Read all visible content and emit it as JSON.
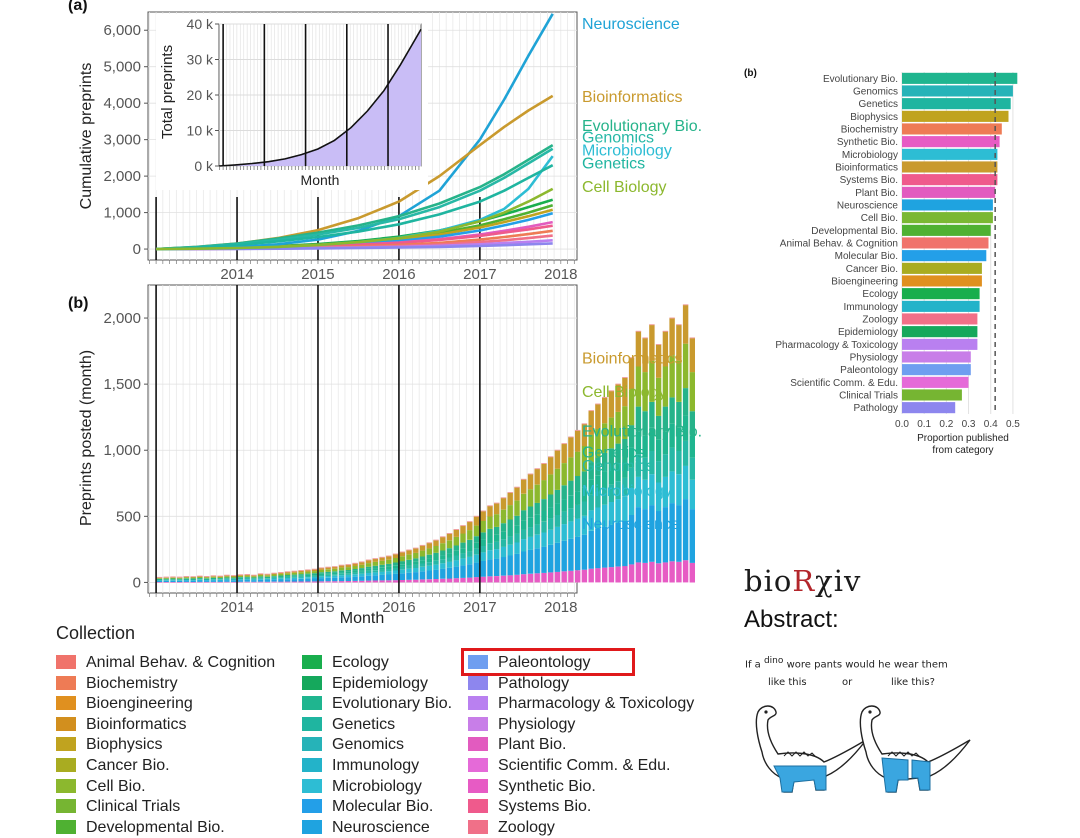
{
  "panel_labels": {
    "top": "(a)",
    "bottom": "(b)",
    "right": "(b)"
  },
  "chart_data": [
    {
      "id": "cumulative",
      "type": "line",
      "title": "",
      "xlabel": "",
      "ylabel": "Cumulative preprints",
      "x_ticks": [
        "2014",
        "2015",
        "2016",
        "2017",
        "2018"
      ],
      "xlim": [
        2013.4,
        2018.7
      ],
      "ylim": [
        -300,
        6500
      ],
      "y_ticks": [
        0,
        1000,
        2000,
        3000,
        4000,
        5000,
        6000
      ],
      "y_tick_labels": [
        "0",
        "1,000",
        "2,000",
        "3,000",
        "4,000",
        "5,000",
        "6,000"
      ],
      "vlines": [
        2013.5,
        2014.5,
        2015.5,
        2016.5,
        2017.5
      ],
      "x": [
        2013.5,
        2014.0,
        2014.5,
        2015.0,
        2015.5,
        2016.0,
        2016.5,
        2017.0,
        2017.5,
        2017.8,
        2018.1,
        2018.4
      ],
      "series": [
        {
          "name": "Neuroscience",
          "color": "#1fa3d6",
          "labeled": true,
          "label_y": 6200,
          "values": [
            0,
            20,
            60,
            130,
            260,
            500,
            900,
            1600,
            3000,
            4100,
            5300,
            6450
          ]
        },
        {
          "name": "Bioinformatics",
          "color": "#c99a2e",
          "labeled": true,
          "label_y": 4200,
          "values": [
            0,
            60,
            150,
            300,
            520,
            850,
            1300,
            2000,
            2850,
            3350,
            3800,
            4200
          ]
        },
        {
          "name": "Evolutionary Bio.",
          "color": "#26b38a",
          "labeled": true,
          "label_y": 3400,
          "values": [
            0,
            60,
            150,
            290,
            450,
            650,
            900,
            1250,
            1700,
            2050,
            2450,
            2850
          ]
        },
        {
          "name": "Genomics",
          "color": "#27b8a6",
          "labeled": true,
          "label_y": 3080,
          "values": [
            0,
            50,
            130,
            250,
            400,
            580,
            820,
            1150,
            1600,
            1950,
            2350,
            2750
          ]
        },
        {
          "name": "Microbiology",
          "color": "#2dbdd4",
          "labeled": true,
          "label_y": 2730,
          "values": [
            0,
            10,
            30,
            60,
            110,
            190,
            310,
            500,
            800,
            1100,
            1650,
            2550
          ]
        },
        {
          "name": "Genetics",
          "color": "#1fb5a0",
          "labeled": true,
          "label_y": 2380,
          "values": [
            0,
            40,
            110,
            210,
            330,
            480,
            680,
            950,
            1300,
            1600,
            1950,
            2300
          ]
        },
        {
          "name": "Cell Biology",
          "color": "#8cb82e",
          "labeled": true,
          "label_y": 1730,
          "values": [
            0,
            10,
            30,
            60,
            110,
            190,
            300,
            480,
            760,
            1000,
            1300,
            1650
          ]
        },
        {
          "name": "Ecology",
          "color": "#19ae4d",
          "labeled": false,
          "values": [
            0,
            15,
            40,
            80,
            140,
            220,
            340,
            510,
            760,
            950,
            1150,
            1350
          ]
        },
        {
          "name": "Developmental Bio.",
          "color": "#4fb132",
          "labeled": false,
          "values": [
            0,
            15,
            35,
            70,
            120,
            190,
            290,
            440,
            650,
            820,
            1000,
            1200
          ]
        },
        {
          "name": "Biophysics",
          "color": "#c0a31f",
          "labeled": false,
          "values": [
            0,
            15,
            35,
            70,
            115,
            180,
            270,
            400,
            590,
            740,
            900,
            1080
          ]
        },
        {
          "name": "Molecular Bio.",
          "color": "#239fe8",
          "labeled": false,
          "values": [
            0,
            10,
            25,
            50,
            85,
            140,
            220,
            340,
            510,
            650,
            800,
            980
          ]
        },
        {
          "name": "Plant Bio.",
          "color": "#e25bbf",
          "labeled": false,
          "values": [
            0,
            10,
            25,
            45,
            75,
            120,
            180,
            270,
            400,
            500,
            610,
            740
          ]
        },
        {
          "name": "Systems Bio.",
          "color": "#ef5a8c",
          "labeled": false,
          "values": [
            0,
            10,
            25,
            45,
            75,
            115,
            170,
            250,
            360,
            450,
            540,
            640
          ]
        },
        {
          "name": "Biochemistry",
          "color": "#ee7b55",
          "labeled": false,
          "values": [
            0,
            5,
            12,
            25,
            45,
            75,
            115,
            170,
            260,
            330,
            410,
            500
          ]
        },
        {
          "name": "Zoology",
          "color": "#f07088",
          "labeled": false,
          "values": [
            0,
            5,
            10,
            20,
            35,
            55,
            85,
            125,
            190,
            240,
            300,
            370
          ]
        },
        {
          "name": "Pharmacology & Toxicology",
          "color": "#b980f0",
          "labeled": false,
          "values": [
            0,
            3,
            8,
            15,
            25,
            40,
            60,
            90,
            130,
            165,
            200,
            240
          ]
        },
        {
          "name": "Pathology",
          "color": "#8d86ee",
          "labeled": false,
          "values": [
            0,
            2,
            5,
            10,
            18,
            28,
            42,
            60,
            85,
            105,
            130,
            155
          ]
        }
      ],
      "inset": {
        "xlabel": "Month",
        "ylabel": "Total preprints",
        "y_ticks": [
          0,
          10000,
          20000,
          30000,
          40000
        ],
        "y_tick_labels": [
          "0 k",
          "10 k",
          "20 k",
          "30 k",
          "40 k"
        ],
        "ylim": [
          0,
          40000
        ],
        "vlines": [
          2013.5,
          2014.5,
          2015.5,
          2016.5,
          2017.5
        ],
        "xlim": [
          2013.4,
          2018.3
        ],
        "x": [
          2013.4,
          2013.8,
          2014.2,
          2014.6,
          2015.0,
          2015.4,
          2015.8,
          2016.2,
          2016.6,
          2017.0,
          2017.4,
          2017.8,
          2018.1,
          2018.3
        ],
        "values": [
          0,
          300,
          700,
          1200,
          2000,
          3200,
          4800,
          7200,
          10800,
          15500,
          21200,
          28500,
          34500,
          38500
        ],
        "fill": "#c9bdf6"
      }
    },
    {
      "id": "monthly",
      "type": "bar",
      "stacked": true,
      "title": "",
      "xlabel": "Month",
      "ylabel": "Preprints posted (month)",
      "x_ticks": [
        "2014",
        "2015",
        "2016",
        "2017",
        "2018"
      ],
      "xlim": [
        2013.4,
        2018.7
      ],
      "ylim": [
        -80,
        2250
      ],
      "y_ticks": [
        0,
        500,
        1000,
        1500,
        2000
      ],
      "y_tick_labels": [
        "0",
        "500",
        "1,000",
        "1,500",
        "2,000"
      ],
      "vlines": [
        2013.5,
        2014.5,
        2015.5,
        2016.5,
        2017.5
      ],
      "month_totals": [
        38,
        40,
        42,
        40,
        45,
        43,
        48,
        45,
        50,
        48,
        55,
        52,
        58,
        60,
        55,
        65,
        62,
        70,
        75,
        80,
        85,
        90,
        95,
        100,
        110,
        115,
        120,
        130,
        135,
        145,
        155,
        170,
        180,
        190,
        200,
        215,
        230,
        245,
        260,
        280,
        300,
        320,
        345,
        370,
        400,
        430,
        460,
        500,
        540,
        580,
        600,
        640,
        680,
        720,
        780,
        820,
        860,
        900,
        950,
        1000,
        1050,
        1100,
        1150,
        1200,
        1300,
        1350,
        1400,
        1450,
        1500,
        1550,
        1700,
        1900,
        1850,
        1950,
        1800,
        1900,
        2000,
        1950,
        2100,
        1850
      ],
      "share_order": [
        "Pink group",
        "Neuroscience",
        "Microbiology",
        "Genomics",
        "Genetics",
        "Evolutionary Bio.",
        "Cell Biology",
        "Bioinformatics"
      ],
      "share_colors": [
        "#e75bc4",
        "#1fa3e0",
        "#2dbdd4",
        "#27b8a6",
        "#1fb58f",
        "#26b38a",
        "#8cb82e",
        "#c99a2e"
      ],
      "shares": [
        0.08,
        0.22,
        0.12,
        0.09,
        0.09,
        0.1,
        0.16,
        0.14
      ],
      "labels": [
        {
          "name": "Bioinformatics",
          "color": "#c99a2e",
          "y": 1700
        },
        {
          "name": "Cell Biology",
          "color": "#8cb82e",
          "y": 1450
        },
        {
          "name": "Evolutionary Bio.",
          "color": "#26b38a",
          "y": 1150
        },
        {
          "name": "Genetics",
          "color": "#1fb58f",
          "y": 990
        },
        {
          "name": "Genomics",
          "color": "#27b8a6",
          "y": 890
        },
        {
          "name": "Microbiology",
          "color": "#2dbdd4",
          "y": 700
        },
        {
          "name": "Neuroscience",
          "color": "#1fa3e0",
          "y": 450
        }
      ]
    },
    {
      "id": "proportion",
      "type": "bar",
      "orientation": "horizontal",
      "title": "",
      "xlabel": "Proportion published from category",
      "ylabel": "",
      "xlim": [
        0,
        0.55
      ],
      "x_ticks": [
        0.0,
        0.1,
        0.2,
        0.3,
        0.4,
        0.5
      ],
      "reference_line": 0.42,
      "categories": [
        "Evolutionary Bio.",
        "Genomics",
        "Genetics",
        "Biophysics",
        "Biochemistry",
        "Synthetic Bio.",
        "Microbiology",
        "Bioinformatics",
        "Systems Bio.",
        "Plant Bio.",
        "Neuroscience",
        "Cell Bio.",
        "Developmental Bio.",
        "Animal Behav. & Cognition",
        "Molecular Bio.",
        "Cancer Bio.",
        "Bioengineering",
        "Ecology",
        "Immunology",
        "Zoology",
        "Epidemiology",
        "Pharmacology & Toxicology",
        "Physiology",
        "Paleontology",
        "Scientific Comm. & Edu.",
        "Clinical Trials",
        "Pathology"
      ],
      "values": [
        0.52,
        0.5,
        0.49,
        0.48,
        0.45,
        0.44,
        0.43,
        0.43,
        0.43,
        0.42,
        0.41,
        0.41,
        0.4,
        0.39,
        0.38,
        0.36,
        0.36,
        0.35,
        0.35,
        0.34,
        0.34,
        0.34,
        0.31,
        0.31,
        0.3,
        0.27,
        0.24
      ],
      "colors": [
        "#1fb58f",
        "#26b3b8",
        "#1fb5a0",
        "#c0a31f",
        "#ee7b55",
        "#e75bc4",
        "#2dbdd4",
        "#c99a2e",
        "#ef5a8c",
        "#e25bbf",
        "#1fa3e0",
        "#7ab833",
        "#4fb132",
        "#f0736b",
        "#239fe8",
        "#a9ac21",
        "#e0901f",
        "#19ae4d",
        "#23b3c9",
        "#f07088",
        "#15a85c",
        "#b980f0",
        "#c87ee8",
        "#6f9ef0",
        "#e56ad8",
        "#76b532",
        "#8d86ee"
      ]
    }
  ],
  "legend": {
    "title": "Collection",
    "columns": [
      [
        {
          "label": "Animal Behav. & Cognition",
          "color": "#f0736b"
        },
        {
          "label": "Biochemistry",
          "color": "#ee7b55"
        },
        {
          "label": "Bioengineering",
          "color": "#e0901f"
        },
        {
          "label": "Bioinformatics",
          "color": "#d28f1e"
        },
        {
          "label": "Biophysics",
          "color": "#c0a31f"
        },
        {
          "label": "Cancer Bio.",
          "color": "#a9ac21"
        },
        {
          "label": "Cell Bio.",
          "color": "#8cb82e"
        },
        {
          "label": "Clinical Trials",
          "color": "#76b532"
        },
        {
          "label": "Developmental Bio.",
          "color": "#4fb132"
        }
      ],
      [
        {
          "label": "Ecology",
          "color": "#19ae4d"
        },
        {
          "label": "Epidemiology",
          "color": "#15a85c"
        },
        {
          "label": "Evolutionary Bio.",
          "color": "#1fb58f"
        },
        {
          "label": "Genetics",
          "color": "#1fb5a0"
        },
        {
          "label": "Genomics",
          "color": "#26b3b8"
        },
        {
          "label": "Immunology",
          "color": "#23b3c9"
        },
        {
          "label": "Microbiology",
          "color": "#2dbdd4"
        },
        {
          "label": "Molecular Bio.",
          "color": "#239fe8"
        },
        {
          "label": "Neuroscience",
          "color": "#1fa3e0"
        }
      ],
      [
        {
          "label": "Paleontology",
          "color": "#6f9ef0"
        },
        {
          "label": "Pathology",
          "color": "#8d86ee"
        },
        {
          "label": "Pharmacology & Toxicology",
          "color": "#b980f0"
        },
        {
          "label": "Physiology",
          "color": "#c87ee8"
        },
        {
          "label": "Plant Bio.",
          "color": "#e25bbf"
        },
        {
          "label": "Scientific Comm. & Edu.",
          "color": "#e56ad8"
        },
        {
          "label": "Synthetic Bio.",
          "color": "#e75bc4"
        },
        {
          "label": "Systems Bio.",
          "color": "#ef5a8c"
        },
        {
          "label": "Zoology",
          "color": "#f07088"
        }
      ]
    ]
  },
  "branding": {
    "logo_pre": "bio",
    "logo_r": "R",
    "logo_post": "χiv",
    "abstract_label": "Abstract:"
  },
  "cartoon": {
    "line1_a": "If a",
    "line1_small": "dino",
    "line1_b": "wore pants would he wear them",
    "left": "like this",
    "middle": "or",
    "right": "like this?",
    "pants_color": "#3aa6e0"
  }
}
